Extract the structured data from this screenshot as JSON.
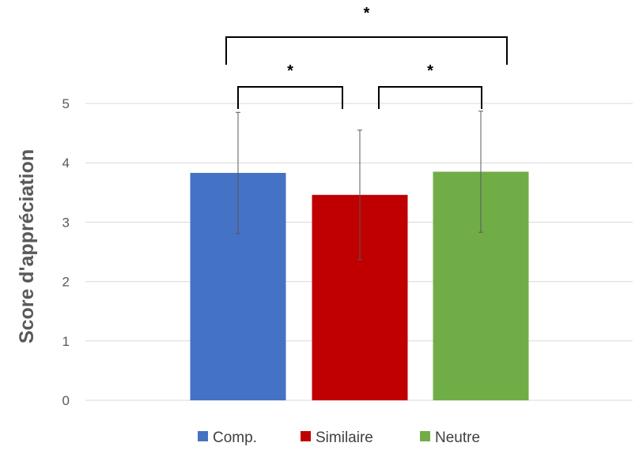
{
  "chart_data": {
    "type": "bar",
    "categories": [
      "Comp.",
      "Similaire",
      "Neutre"
    ],
    "values": [
      3.83,
      3.46,
      3.85
    ],
    "errors": [
      1.02,
      1.09,
      1.02
    ],
    "colors": [
      "#4472C4",
      "#C00000",
      "#70AD47"
    ],
    "ylabel": "Score d'appréciation",
    "ylim": [
      0,
      5
    ],
    "yticks": [
      "0",
      "1",
      "2",
      "3",
      "4",
      "5"
    ],
    "grid": true,
    "legend_position": "bottom",
    "legend": [
      "Comp.",
      "Similaire",
      "Neutre"
    ],
    "significance": [
      {
        "from": 0,
        "to": 1,
        "label": "*"
      },
      {
        "from": 1,
        "to": 2,
        "label": "*"
      },
      {
        "from": 0,
        "to": 2,
        "label": "*"
      }
    ]
  }
}
